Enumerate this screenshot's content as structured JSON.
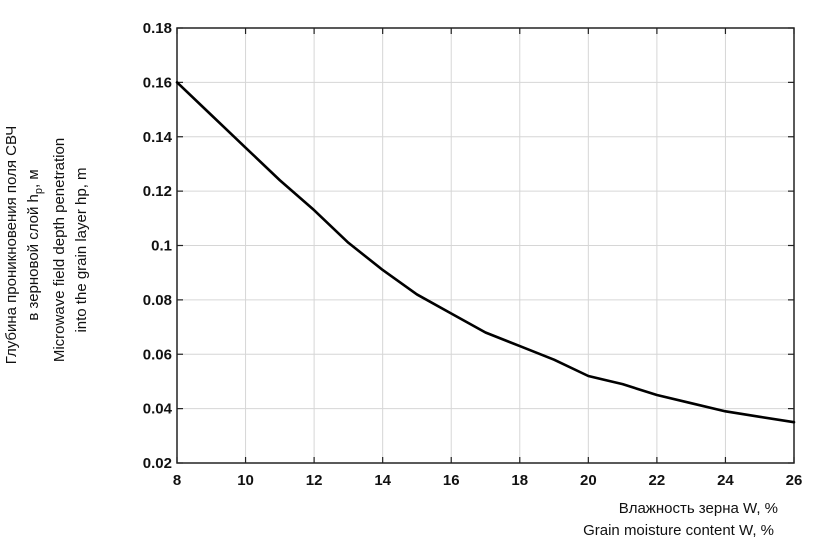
{
  "chart_data": {
    "type": "line",
    "xlabel_ru": "Влажность зерна W, %",
    "xlabel_en": "Grain moisture content W, %",
    "ylabel_ru_1": "Глубина проникновения поля СВЧ",
    "ylabel_ru_2_prefix": "в зерновой слой h",
    "ylabel_ru_2_sub": "p",
    "ylabel_ru_2_suffix": ", м",
    "ylabel_en_1": "Microwave field depth penetration",
    "ylabel_en_2": "into the grain layer hp, m",
    "xlim": [
      8,
      26
    ],
    "ylim": [
      0.02,
      0.18
    ],
    "x_ticks": [
      8,
      10,
      12,
      14,
      16,
      18,
      20,
      22,
      24,
      26
    ],
    "x_tick_labels": [
      "8",
      "10",
      "12",
      "14",
      "16",
      "18",
      "20",
      "22",
      "24",
      "26"
    ],
    "y_ticks": [
      0.02,
      0.04,
      0.06,
      0.08,
      0.1,
      0.12,
      0.14,
      0.16,
      0.18
    ],
    "y_tick_labels": [
      "0.02",
      "0.04",
      "0.06",
      "0.08",
      "0.1",
      "0.12",
      "0.14",
      "0.16",
      "0.18"
    ],
    "grid": true,
    "series": [
      {
        "x": [
          8,
          9,
          10,
          11,
          12,
          13,
          14,
          15,
          16,
          17,
          18,
          19,
          20,
          21,
          22,
          23,
          24,
          25,
          26
        ],
        "y": [
          0.16,
          0.148,
          0.136,
          0.124,
          0.113,
          0.101,
          0.091,
          0.082,
          0.075,
          0.068,
          0.063,
          0.058,
          0.052,
          0.049,
          0.045,
          0.042,
          0.039,
          0.037,
          0.035
        ],
        "color": "#000000"
      }
    ]
  }
}
